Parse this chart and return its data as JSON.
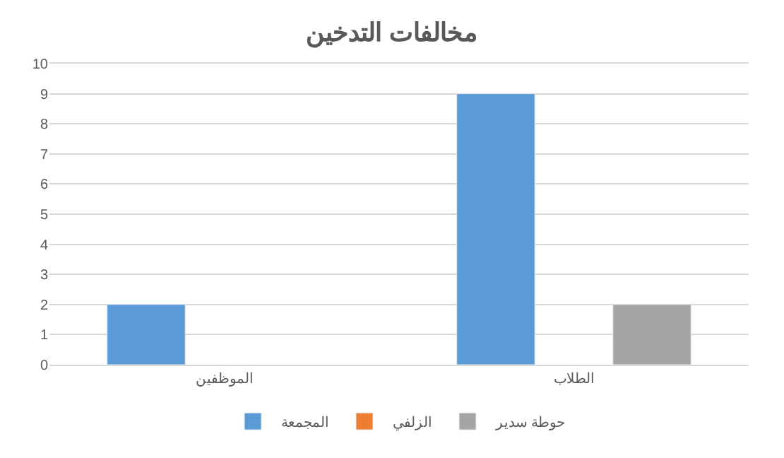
{
  "chart_data": {
    "type": "bar",
    "title": "مخالفات التدخين",
    "categories": [
      "الموظفين",
      "الطلاب"
    ],
    "series": [
      {
        "name": "المجمعة",
        "color": "#5b9bd5",
        "values": [
          2,
          9
        ]
      },
      {
        "name": "الزلفي",
        "color": "#ed7d31",
        "values": [
          null,
          null
        ]
      },
      {
        "name": "حوطة سدير",
        "color": "#a5a5a5",
        "values": [
          null,
          2
        ]
      }
    ],
    "ylim": [
      0,
      10
    ],
    "yticks": [
      0,
      1,
      2,
      3,
      4,
      5,
      6,
      7,
      8,
      9,
      10
    ],
    "grid": "y",
    "legend": "bottom"
  }
}
